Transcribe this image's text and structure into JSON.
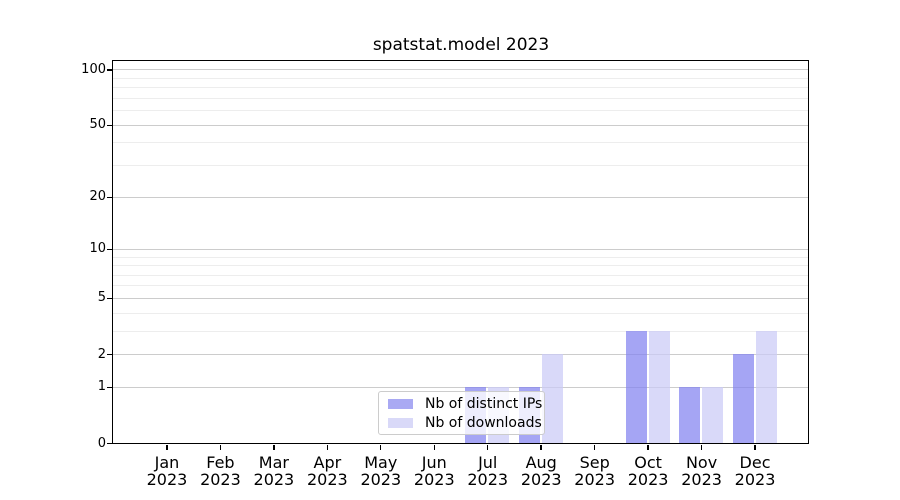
{
  "figure": {
    "background": "#ffffff",
    "frame_color": "#000000",
    "major_grid_color": "#cccccc",
    "minor_grid_color": "#ededed"
  },
  "chart_data": {
    "type": "bar",
    "title": "spatstat.model 2023",
    "xlabel": "",
    "ylabel": "",
    "categories": [
      "Jan",
      "Feb",
      "Mar",
      "Apr",
      "May",
      "Jun",
      "Jul",
      "Aug",
      "Sep",
      "Oct",
      "Nov",
      "Dec"
    ],
    "category_year": "2023",
    "series": [
      {
        "key": "distinct-ips",
        "name": "Nb of distinct IPs",
        "color": "#a9a9f3",
        "fill": "rgba(130,130,240,0.72)",
        "values": [
          0,
          0,
          0,
          0,
          0,
          0,
          1,
          1,
          0,
          3,
          1,
          2
        ]
      },
      {
        "key": "downloads",
        "name": "Nb of downloads",
        "color": "#d9d9f8",
        "fill": "rgba(202,202,246,0.72)",
        "values": [
          0,
          0,
          0,
          0,
          0,
          0,
          1,
          2,
          0,
          3,
          1,
          3
        ]
      }
    ],
    "yticks": [
      0,
      1,
      2,
      5,
      10,
      20,
      50,
      100
    ],
    "minor_gridlines": [
      3,
      4,
      6,
      7,
      8,
      9,
      30,
      40,
      60,
      70,
      80,
      90
    ],
    "scale": "log1p",
    "ylim": [
      0,
      111
    ],
    "grid": true,
    "legend_position": "lower center-left inside plot"
  }
}
